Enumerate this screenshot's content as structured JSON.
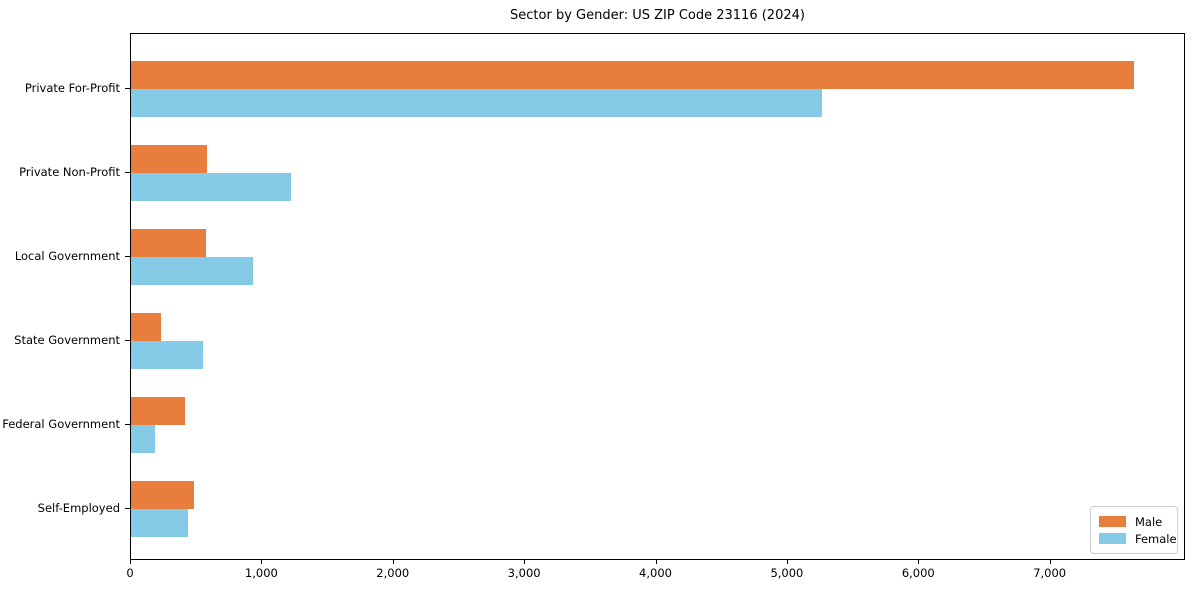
{
  "chart_data": {
    "type": "bar",
    "orientation": "horizontal",
    "title": "Sector by Gender: US ZIP Code 23116 (2024)",
    "xlabel": "",
    "ylabel": "",
    "categories": [
      "Private For-Profit",
      "Private Non-Profit",
      "Local Government",
      "State Government",
      "Federal Government",
      "Self-Employed"
    ],
    "series": [
      {
        "name": "Male",
        "color": "#e87e3d",
        "values": [
          7650,
          580,
          570,
          230,
          410,
          480
        ]
      },
      {
        "name": "Female",
        "color": "#85cbe8",
        "values": [
          5270,
          1220,
          930,
          550,
          185,
          435
        ]
      }
    ],
    "xlim": [
      0,
      8030
    ],
    "x_ticks": [
      0,
      1000,
      2000,
      3000,
      4000,
      5000,
      6000,
      7000
    ],
    "x_tick_labels": [
      "0",
      "1,000",
      "2,000",
      "3,000",
      "4,000",
      "5,000",
      "6,000",
      "7,000"
    ],
    "legend": {
      "position": "lower-right",
      "entries": [
        "Male",
        "Female"
      ]
    },
    "grid": false,
    "frame_color": "#000000",
    "text_color": "#000000",
    "background_color": "#ffffff"
  }
}
